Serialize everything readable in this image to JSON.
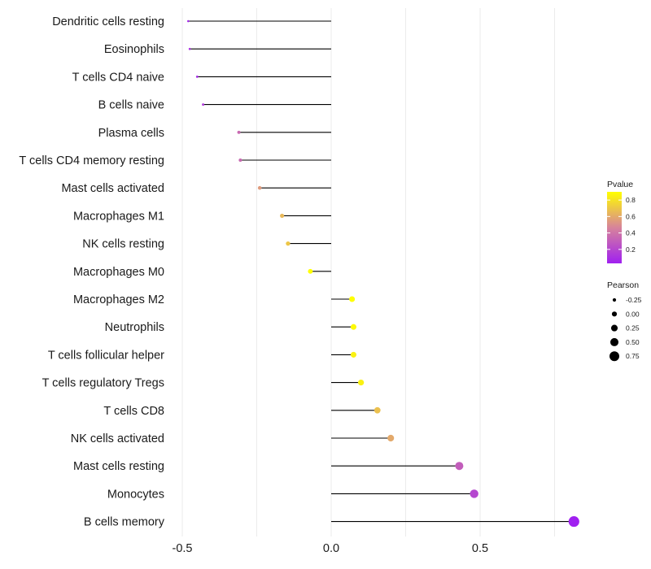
{
  "chart_data": {
    "type": "lollipop",
    "title": "",
    "xlabel": "",
    "ylabel": "",
    "xlim": [
      -0.5,
      0.82
    ],
    "x_ticks": [
      -0.5,
      0.0,
      0.5
    ],
    "x_tick_labels": [
      "-0.5",
      "0.0",
      "0.5"
    ],
    "grid": true,
    "categories": [
      "Dendritic cells resting",
      "Eosinophils",
      "T cells CD4 naive",
      "B cells naive",
      "Plasma cells",
      "T cells CD4 memory resting",
      "Mast cells activated",
      "Macrophages M1",
      "NK cells resting",
      "Macrophages M0",
      "Macrophages M2",
      "Neutrophils",
      "T cells follicular helper",
      "T cells regulatory  Tregs ",
      "T cells CD8",
      "NK cells activated",
      "Mast cells resting",
      "Monocytes",
      "B cells memory"
    ],
    "series": [
      {
        "name": "Pearson",
        "values": [
          -0.48,
          -0.475,
          -0.45,
          -0.43,
          -0.31,
          -0.305,
          -0.24,
          -0.165,
          -0.145,
          -0.07,
          0.07,
          0.075,
          0.075,
          0.1,
          0.155,
          0.2,
          0.43,
          0.48,
          0.815
        ]
      },
      {
        "name": "Pvalue",
        "values": [
          0.05,
          0.1,
          0.08,
          0.15,
          0.35,
          0.35,
          0.55,
          0.65,
          0.7,
          0.9,
          0.9,
          0.88,
          0.85,
          0.85,
          0.68,
          0.6,
          0.3,
          0.2,
          0.02
        ]
      }
    ],
    "legend": {
      "color": {
        "title": "Pvalue",
        "min": 0.03,
        "max": 0.9,
        "ticks": [
          0.2,
          0.4,
          0.6,
          0.8
        ],
        "tick_labels": [
          "0.2",
          "0.4",
          "0.6",
          "0.8"
        ],
        "low_color": "#a020f0",
        "mid_color": "#d7839b",
        "high_color": "#ffff00"
      },
      "size": {
        "title": "Pearson",
        "values": [
          -0.25,
          0.0,
          0.25,
          0.5,
          0.75
        ],
        "labels": [
          "-0.25",
          "0.00",
          "0.25",
          "0.50",
          "0.75"
        ]
      },
      "placement": "right"
    }
  }
}
